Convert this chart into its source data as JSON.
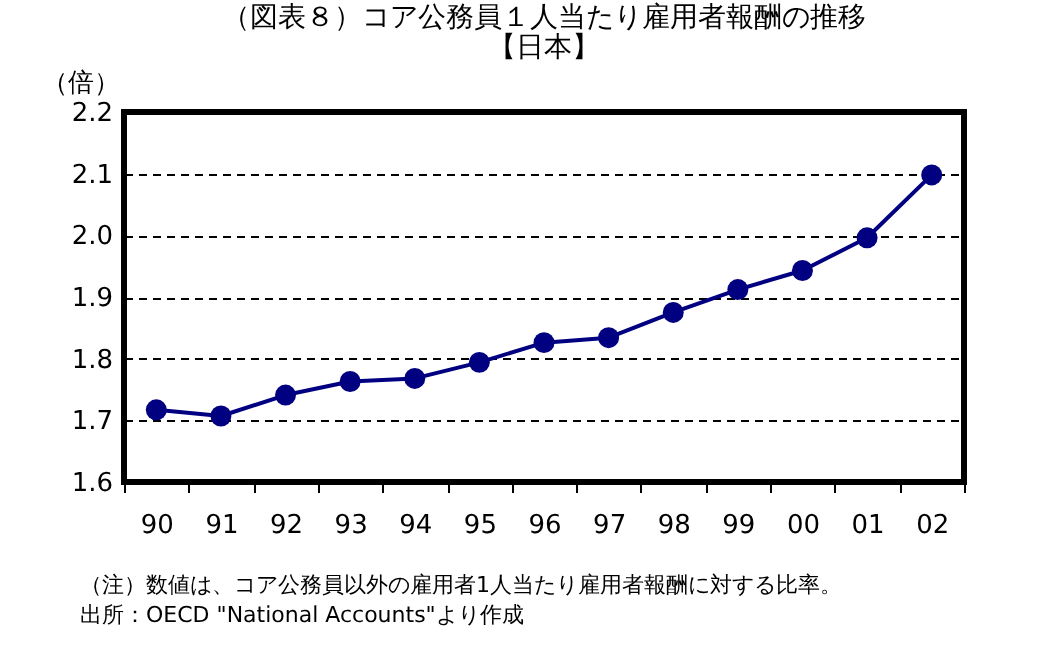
{
  "chart_data": {
    "type": "line",
    "title": "（図表８）コア公務員１人当たり雇用者報酬の推移",
    "subtitle": "【日本】",
    "ylabel": "（倍）",
    "categories": [
      "90",
      "91",
      "92",
      "93",
      "94",
      "95",
      "96",
      "97",
      "98",
      "99",
      "00",
      "01",
      "02"
    ],
    "series": [
      {
        "color": "#000080",
        "values": [
          1.717,
          1.707,
          1.741,
          1.763,
          1.768,
          1.794,
          1.826,
          1.834,
          1.875,
          1.912,
          1.943,
          1.996,
          2.098
        ]
      }
    ],
    "ylim": [
      1.6,
      2.2
    ],
    "yticks": [
      {
        "value": 1.6,
        "label": "1.6"
      },
      {
        "value": 1.7,
        "label": "1.7"
      },
      {
        "value": 1.8,
        "label": "1.8"
      },
      {
        "value": 1.9,
        "label": "1.9"
      },
      {
        "value": 2.0,
        "label": "2.0"
      },
      {
        "value": 2.1,
        "label": "2.1"
      },
      {
        "value": 2.2,
        "label": "2.2"
      }
    ],
    "grid": "y",
    "marker": "circle",
    "annotations": [
      "（注）数値は、コア公務員以外の雇用者1人当たり雇用者報酬に対する比率。",
      "出所：OECD \"National Accounts\"より作成"
    ]
  }
}
